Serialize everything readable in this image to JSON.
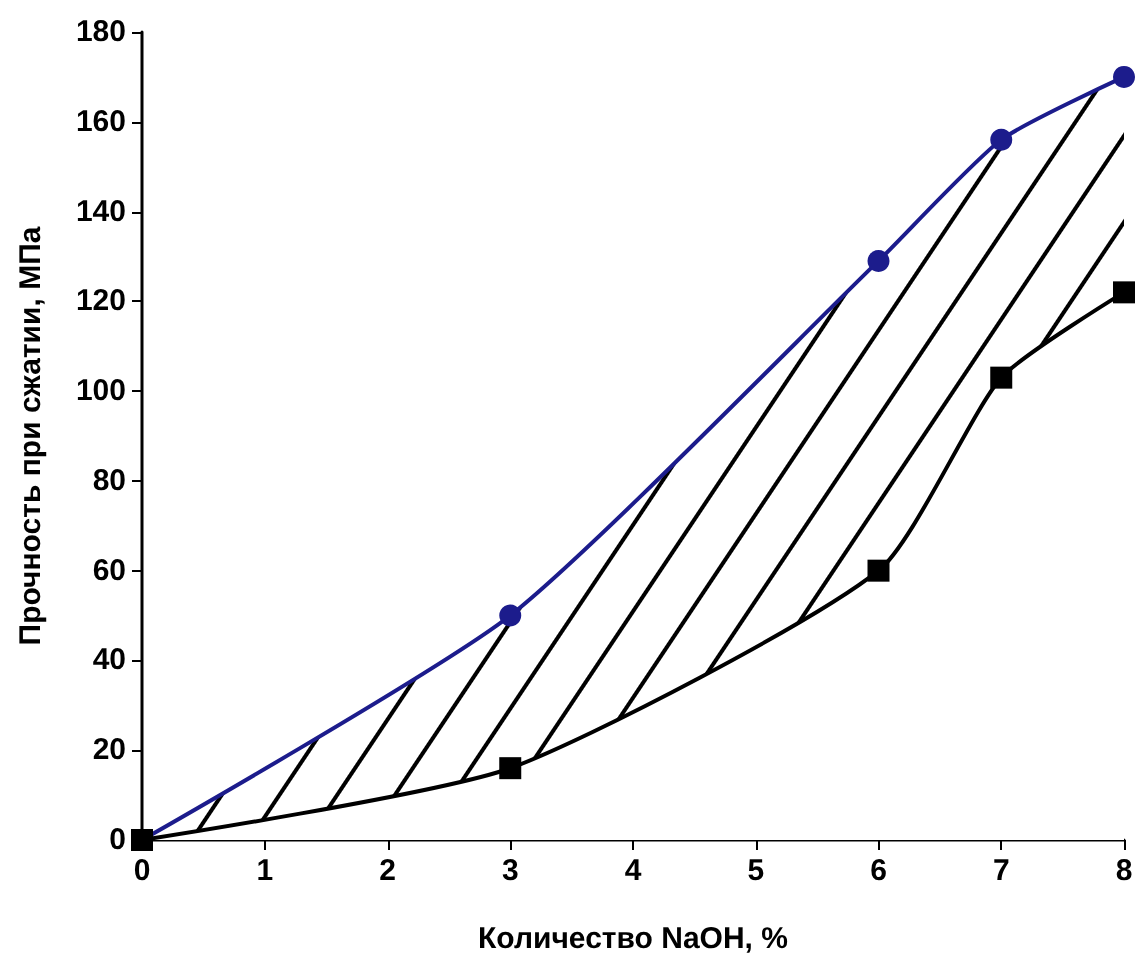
{
  "chart_data": {
    "type": "line",
    "xlabel": "Количество NaOH, %",
    "ylabel": "Прочность при сжатии, МПа",
    "x": [
      0,
      3,
      6,
      7,
      8
    ],
    "series": [
      {
        "color": "#1c1c8c",
        "values": [
          0,
          50,
          129,
          156,
          170
        ],
        "marker": "circle",
        "lower": [
          0,
          16,
          60,
          103,
          122
        ],
        "upper": [
          0,
          50,
          129,
          156,
          170
        ]
      },
      {
        "color": "#000000",
        "values": [
          0,
          16,
          60,
          103,
          122
        ],
        "marker": "square"
      }
    ],
    "xlim": [
      0,
      8
    ],
    "xticks": [
      0,
      1,
      2,
      3,
      4,
      5,
      6,
      7,
      8
    ],
    "ylim": [
      0,
      180
    ],
    "yticks": [
      0,
      20,
      40,
      60,
      80,
      100,
      120,
      140,
      160,
      180
    ],
    "grid": false,
    "line_style": "solid"
  }
}
